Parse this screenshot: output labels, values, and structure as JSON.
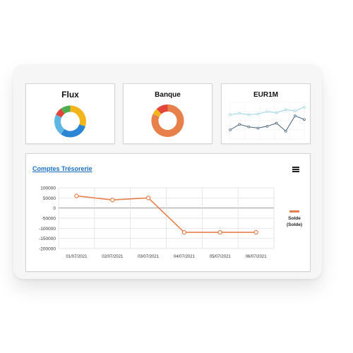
{
  "cards": [
    {
      "title": "Flux",
      "segments": [
        {
          "color": "#f2b51c",
          "value": 30
        },
        {
          "color": "#2a86d4",
          "value": 30
        },
        {
          "color": "#5db6e3",
          "value": 22
        },
        {
          "color": "#e2453a",
          "value": 8
        },
        {
          "color": "#4cae50",
          "value": 10
        }
      ]
    },
    {
      "title": "Banque",
      "segments": [
        {
          "color": "#e8804c",
          "value": 82
        },
        {
          "color": "#f2b51c",
          "value": 6
        },
        {
          "color": "#e2453a",
          "value": 12
        }
      ]
    },
    {
      "title": "EUR1M"
    }
  ],
  "panel": {
    "title": "Comptes Trésorerie",
    "menu_icon": "hamburger-menu-icon"
  },
  "chart_data": {
    "type": "line",
    "x": [
      "01/07/2021",
      "02/07/2021",
      "03/07/2021",
      "04/07/2021",
      "05/07/2021",
      "06/07/2021"
    ],
    "series": [
      {
        "name": "Solde (Solde)",
        "values": [
          60000,
          40000,
          50000,
          -120000,
          -120000,
          -120000
        ],
        "color": "#e8804c"
      }
    ],
    "yticks": [
      100000,
      50000,
      0,
      -50000,
      -100000,
      -150000,
      -200000
    ],
    "ylim": [
      -200000,
      100000
    ],
    "grid": true,
    "legend": "right"
  },
  "eur_chart": {
    "type": "line",
    "series": [
      {
        "color": "#9cd5e8",
        "values": [
          4,
          4.2,
          4,
          4.1,
          4.5,
          4.3,
          4.8,
          4.6,
          5.2
        ]
      },
      {
        "color": "#44607a",
        "values": [
          1.5,
          2.4,
          2,
          1.8,
          2.1,
          2.6,
          1.3,
          3.8,
          3.2
        ]
      }
    ]
  }
}
